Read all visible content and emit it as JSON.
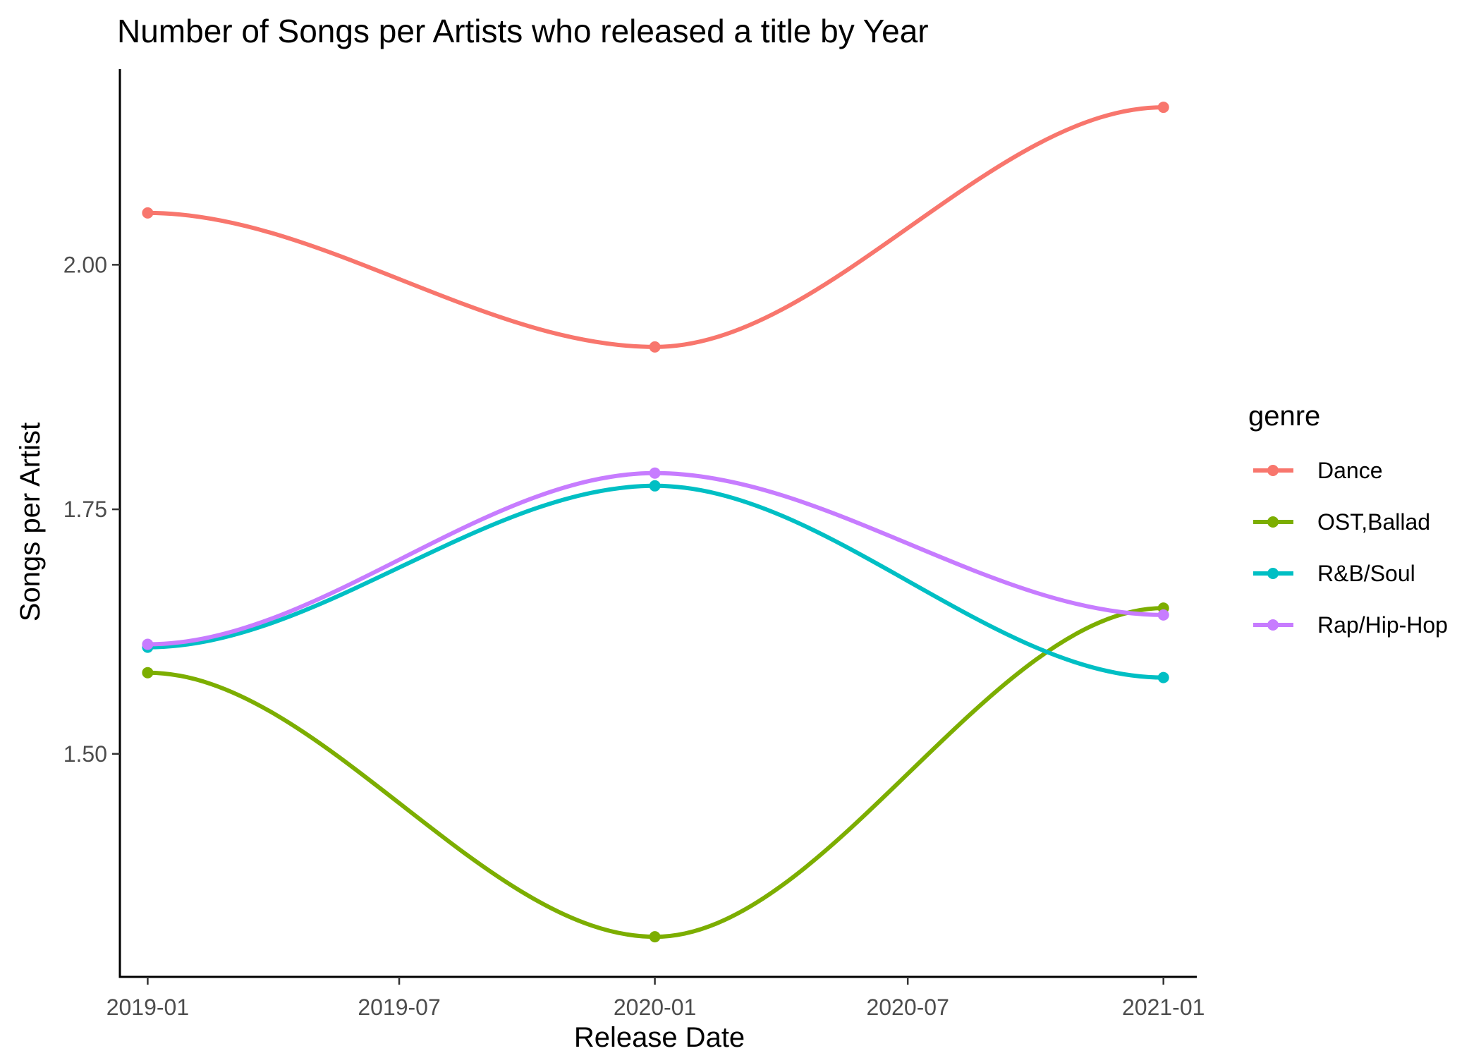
{
  "chart_data": {
    "type": "line",
    "title": "Number of Songs per Artists who released a title by Year",
    "xlabel": "Release Date",
    "ylabel": "Songs per Artist",
    "x": [
      "2019-01-01",
      "2020-01-01",
      "2021-01-01"
    ],
    "x_ticks": [
      "2019-01",
      "2019-07",
      "2020-01",
      "2020-07",
      "2021-01"
    ],
    "xlim": [
      "2018-12-12",
      "2021-01-25"
    ],
    "y_ticks": [
      1.5,
      1.75,
      2.0
    ],
    "y_tick_labels": [
      "1.50",
      "1.75",
      "2.00"
    ],
    "ylim": [
      1.272,
      2.2
    ],
    "grid": false,
    "smooth": true,
    "legend_title": "genre",
    "legend_position": "right",
    "series": [
      {
        "name": "Dance",
        "color": "#F8766D",
        "values": [
          2.053,
          1.916,
          2.161
        ]
      },
      {
        "name": "OST,Ballad",
        "color": "#7CAE00",
        "values": [
          1.583,
          1.313,
          1.649
        ]
      },
      {
        "name": "R&B/Soul",
        "color": "#00BFC4",
        "values": [
          1.609,
          1.774,
          1.578
        ]
      },
      {
        "name": "Rap/Hip-Hop",
        "color": "#C77CFF",
        "values": [
          1.612,
          1.787,
          1.642
        ]
      }
    ]
  }
}
